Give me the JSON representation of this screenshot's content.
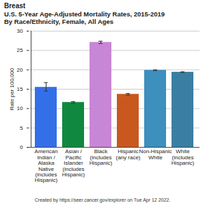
{
  "chart_data": {
    "type": "bar",
    "title": "Breast",
    "subtitle": "U.S. 5-Year Age-Adjusted Mortality Rates, 2015-2019\nBy Race/Ethnicity, Female, All Ages",
    "y_label": "Rate per 100,000",
    "caption": "Created by https://seer.cancer.gov/explorer on Tue Apr 12 2022.",
    "categories": [
      "American\nIndian /\nAlaska\nNative\n(includes\nHispanic)",
      "Asian /\nPacific\nIslander\n(includes\nHispanic)",
      "Black\n(includes\nHispanic)",
      "Hispanic\n(any race)",
      "Non-Hispanic\nWhite",
      "White\n(includes\nHispanic)"
    ],
    "values": [
      15.5,
      11.6,
      27.1,
      13.7,
      19.9,
      19.4
    ],
    "error_low": [
      14.5,
      11.4,
      26.8,
      13.5,
      19.8,
      19.3
    ],
    "error_high": [
      16.7,
      11.8,
      27.4,
      13.9,
      20.0,
      19.5
    ],
    "colors": [
      "#3370e8",
      "#118840",
      "#c886d6",
      "#c9581f",
      "#3d8fbd",
      "#3a7fa3"
    ],
    "ylim": [
      0,
      30
    ],
    "yticks": [
      0,
      5,
      10,
      15,
      20,
      25,
      30
    ],
    "grid": true
  }
}
